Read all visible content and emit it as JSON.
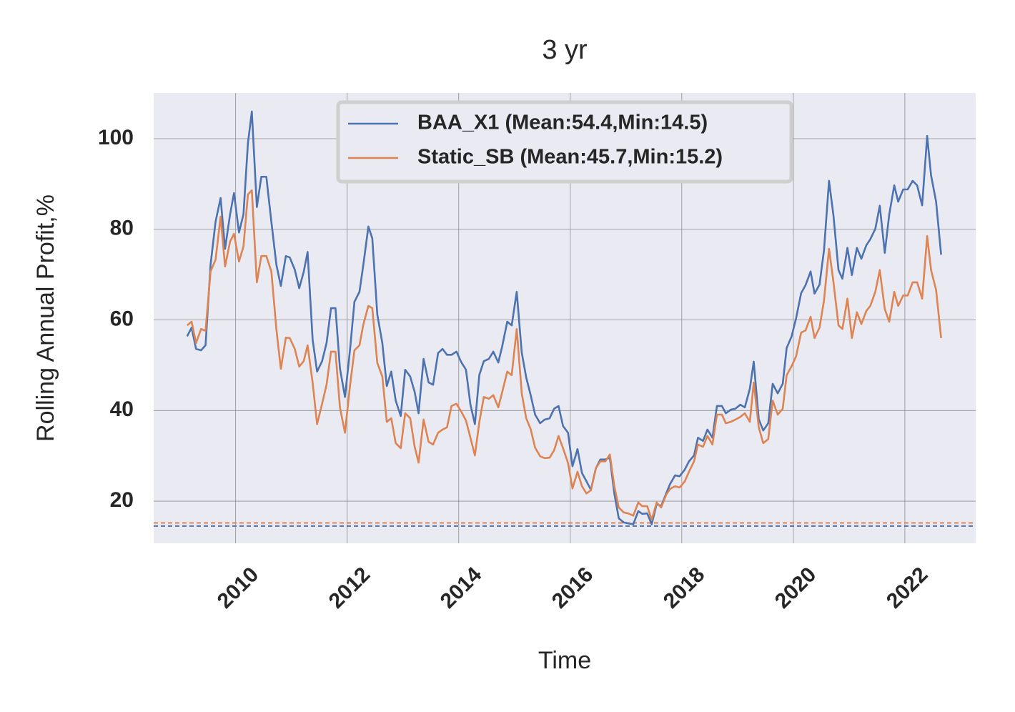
{
  "chart_data": {
    "type": "line",
    "title": "3 yr",
    "xlabel": "Time",
    "ylabel": "Rolling Annual Profit,%",
    "xlim": [
      2008.53,
      2023.27
    ],
    "ylim": [
      10.7,
      110.1
    ],
    "xticks": [
      2010,
      2012,
      2014,
      2016,
      2018,
      2020,
      2022
    ],
    "yticks": [
      20,
      40,
      60,
      80,
      100
    ],
    "grid": true,
    "legend": "upper center",
    "x": [
      2009.13,
      2009.21,
      2009.29,
      2009.38,
      2009.46,
      2009.55,
      2009.64,
      2009.73,
      2009.81,
      2009.9,
      2009.97,
      2010.06,
      2010.14,
      2010.22,
      2010.29,
      2010.38,
      2010.46,
      2010.55,
      2010.64,
      2010.73,
      2010.81,
      2010.9,
      2010.97,
      2011.06,
      2011.14,
      2011.22,
      2011.29,
      2011.38,
      2011.46,
      2011.55,
      2011.63,
      2011.71,
      2011.79,
      2011.87,
      2011.96,
      2012.05,
      2012.13,
      2012.22,
      2012.29,
      2012.38,
      2012.45,
      2012.54,
      2012.63,
      2012.71,
      2012.79,
      2012.87,
      2012.96,
      2013.04,
      2013.13,
      2013.21,
      2013.28,
      2013.37,
      2013.46,
      2013.54,
      2013.63,
      2013.71,
      2013.79,
      2013.87,
      2013.96,
      2014.04,
      2014.13,
      2014.21,
      2014.29,
      2014.37,
      2014.45,
      2014.54,
      2014.62,
      2014.71,
      2014.78,
      2014.87,
      2014.95,
      2015.04,
      2015.13,
      2015.21,
      2015.29,
      2015.37,
      2015.46,
      2015.54,
      2015.63,
      2015.71,
      2015.79,
      2015.87,
      2015.96,
      2016.04,
      2016.13,
      2016.21,
      2016.29,
      2016.37,
      2016.46,
      2016.54,
      2016.63,
      2016.71,
      2016.79,
      2016.87,
      2016.96,
      2017.04,
      2017.13,
      2017.22,
      2017.29,
      2017.38,
      2017.46,
      2017.55,
      2017.63,
      2017.72,
      2017.79,
      2017.88,
      2017.96,
      2018.05,
      2018.13,
      2018.22,
      2018.29,
      2018.38,
      2018.46,
      2018.55,
      2018.63,
      2018.72,
      2018.79,
      2018.88,
      2018.96,
      2019.05,
      2019.13,
      2019.22,
      2019.29,
      2019.38,
      2019.46,
      2019.55,
      2019.63,
      2019.72,
      2019.81,
      2019.88,
      2019.97,
      2020.05,
      2020.14,
      2020.22,
      2020.31,
      2020.38,
      2020.47,
      2020.55,
      2020.64,
      2020.72,
      2020.81,
      2020.88,
      2020.97,
      2021.05,
      2021.14,
      2021.22,
      2021.31,
      2021.38,
      2021.47,
      2021.55,
      2021.64,
      2021.72,
      2021.81,
      2021.88,
      2021.97,
      2022.05,
      2022.14,
      2022.22,
      2022.31,
      2022.4,
      2022.47,
      2022.56,
      2022.65
    ],
    "series": [
      {
        "name": "BAA_X1 (Mean:54.4,Min:14.5)",
        "color": "#4c72b0",
        "values": [
          56.4,
          58.3,
          53.6,
          53.3,
          54.4,
          72.2,
          81.7,
          86.9,
          75.7,
          83.3,
          88,
          79.3,
          83.3,
          99,
          106,
          84.9,
          91.6,
          91.6,
          81.7,
          72.2,
          67.5,
          74.1,
          73.8,
          71.1,
          67,
          70.6,
          75,
          55.7,
          48.6,
          50.9,
          54.9,
          62.6,
          62.6,
          49.3,
          43,
          53.3,
          64,
          66.2,
          72.2,
          80.6,
          78,
          61.2,
          54.9,
          45.4,
          48.6,
          42.2,
          38.8,
          49,
          47.5,
          44.1,
          39.4,
          51.4,
          46.2,
          45.7,
          52.7,
          53.6,
          52.3,
          52.3,
          53,
          50.8,
          49,
          41.3,
          37,
          47.9,
          50.9,
          51.4,
          53,
          50.6,
          54.2,
          59.6,
          58.8,
          66.2,
          52.8,
          47.3,
          43.4,
          39.1,
          37.2,
          38,
          38.3,
          40.4,
          41,
          36.6,
          35.1,
          27.7,
          31.5,
          26.2,
          24.4,
          22.5,
          27.3,
          29.2,
          29.2,
          29.6,
          21.7,
          16.2,
          15.3,
          15.1,
          14.9,
          17.8,
          17.2,
          17.3,
          14.9,
          19.4,
          18.9,
          21.7,
          23.8,
          25.7,
          25.5,
          26.9,
          28.8,
          30.1,
          34,
          33.3,
          35.8,
          34,
          41,
          41,
          39.4,
          40.2,
          40.4,
          41.3,
          40.7,
          44.8,
          50.8,
          38.1,
          35.6,
          37.2,
          45.9,
          43.8,
          45.9,
          53.8,
          56.4,
          60.4,
          65.9,
          67.7,
          70.7,
          65.8,
          67.8,
          75.4,
          90.7,
          83,
          71,
          69.1,
          75.9,
          69.9,
          75.9,
          73.5,
          76.5,
          77.8,
          80.1,
          85.2,
          74.8,
          83.3,
          89.7,
          86.1,
          88.8,
          88.8,
          90.7,
          89.7,
          85.3,
          100.6,
          91.9,
          86.1,
          74.4
        ]
      },
      {
        "name": "Static_SB (Mean:45.7,Min:15.2)",
        "color": "#dd8452",
        "values": [
          58.8,
          59.6,
          54.9,
          58,
          57.6,
          70.7,
          73.3,
          82.8,
          71.8,
          77.3,
          79,
          72.9,
          76.2,
          87.7,
          88.6,
          68.3,
          74.1,
          74.1,
          70.7,
          58,
          49.2,
          56.1,
          56,
          53.6,
          49.7,
          50.9,
          54.4,
          46.2,
          37,
          41.5,
          45.7,
          53,
          53,
          40.7,
          35.1,
          45.4,
          53.3,
          54.4,
          59,
          63.1,
          62.6,
          50.5,
          47.5,
          37.5,
          38.3,
          32.8,
          31.7,
          39.4,
          38.3,
          32,
          28.5,
          38,
          33.1,
          32.5,
          35.1,
          35.8,
          36.3,
          41,
          41.5,
          39.9,
          37.8,
          34,
          30.1,
          37.5,
          43,
          42.6,
          43.4,
          40.7,
          44.1,
          48.6,
          47.8,
          58,
          43.8,
          38.3,
          35.9,
          31.8,
          29.9,
          29.5,
          29.6,
          31.2,
          34.4,
          31.7,
          28.4,
          22.8,
          26.5,
          23.3,
          21.7,
          22.4,
          27.3,
          28.8,
          28.8,
          30.3,
          23.3,
          18.6,
          17.5,
          17.3,
          16.8,
          19.7,
          18.9,
          18.9,
          15.9,
          19.7,
          18.6,
          21.4,
          22.7,
          23.3,
          23,
          24.3,
          26.5,
          28.8,
          32.5,
          32,
          34.4,
          32.5,
          39.1,
          39.1,
          37.2,
          37.5,
          38,
          38.6,
          39.4,
          37.5,
          46.2,
          36.3,
          32.8,
          33.7,
          42.2,
          39.1,
          40.4,
          47.8,
          49.8,
          52,
          57.2,
          57.7,
          60.7,
          56,
          58.3,
          64.3,
          75.7,
          68.3,
          58.8,
          58,
          64.7,
          56,
          61.7,
          59.1,
          62,
          63.1,
          66.2,
          71,
          62.4,
          59.6,
          66.2,
          63.1,
          65.4,
          65.4,
          68.3,
          68.3,
          64.7,
          78.5,
          71,
          66.6,
          56
        ]
      }
    ],
    "reference_lines": [
      {
        "value": 14.5,
        "color": "#4c72b0"
      },
      {
        "value": 15.2,
        "color": "#dd8452"
      }
    ]
  }
}
